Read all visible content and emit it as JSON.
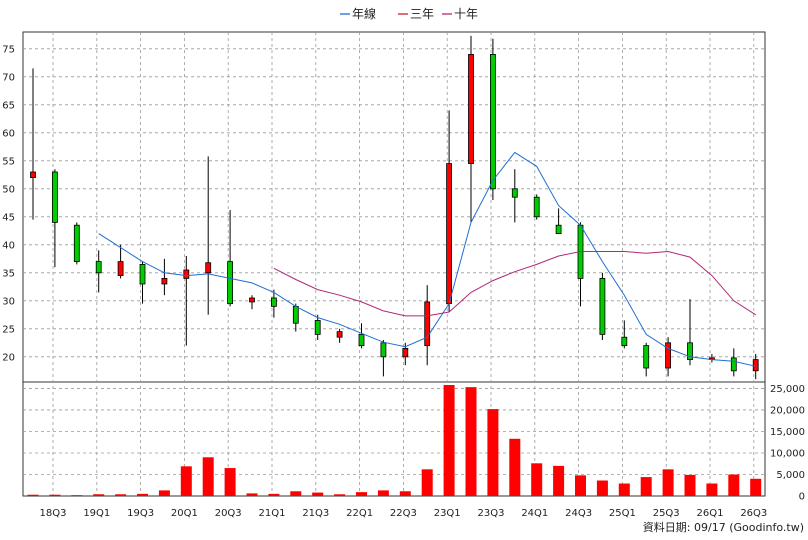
{
  "chart_data": {
    "type": "candlestick+bar",
    "legend": [
      {
        "name": "年線",
        "color": "#1f6fd1"
      },
      {
        "name": "三年",
        "color": "#d11f1f"
      },
      {
        "name": "十年",
        "color": "#b0287a"
      }
    ],
    "x_tick_labels": [
      "18Q3",
      "19Q1",
      "19Q3",
      "20Q1",
      "20Q3",
      "21Q1",
      "21Q3",
      "22Q1",
      "22Q3",
      "23Q1",
      "23Q3",
      "24Q1",
      "24Q3",
      "25Q1",
      "25Q3",
      "26Q1",
      "26Q3"
    ],
    "price_axis": {
      "ticks": [
        20,
        25,
        30,
        35,
        40,
        45,
        50,
        55,
        60,
        65,
        70,
        75
      ],
      "range": [
        15.5,
        78
      ]
    },
    "volume_axis": {
      "ticks": [
        "0",
        "5,000",
        "10,000",
        "15,000",
        "20,000",
        "25,000"
      ],
      "range": [
        0,
        26500
      ]
    },
    "candles": [
      {
        "o": 52.0,
        "h": 71.5,
        "l": 44.5,
        "c": 53.0
      },
      {
        "o": 53.0,
        "h": 53.5,
        "l": 36.0,
        "c": 44.0
      },
      {
        "o": 43.5,
        "h": 44.0,
        "l": 36.5,
        "c": 37.0
      },
      {
        "o": 37.0,
        "h": 39.0,
        "l": 31.5,
        "c": 35.0
      },
      {
        "o": 34.5,
        "h": 40.0,
        "l": 34.0,
        "c": 37.0
      },
      {
        "o": 36.5,
        "h": 37.0,
        "l": 29.5,
        "c": 33.0
      },
      {
        "o": 33.0,
        "h": 37.5,
        "l": 31.0,
        "c": 34.0
      },
      {
        "o": 34.0,
        "h": 38.0,
        "l": 22.0,
        "c": 35.5
      },
      {
        "o": 35.0,
        "h": 55.8,
        "l": 27.5,
        "c": 36.8
      },
      {
        "o": 37.0,
        "h": 46.2,
        "l": 29.0,
        "c": 29.5
      },
      {
        "o": 29.8,
        "h": 31.0,
        "l": 28.5,
        "c": 30.5
      },
      {
        "o": 30.5,
        "h": 32.0,
        "l": 27.0,
        "c": 29.0
      },
      {
        "o": 29.0,
        "h": 29.5,
        "l": 24.5,
        "c": 26.0
      },
      {
        "o": 26.5,
        "h": 27.5,
        "l": 23.0,
        "c": 24.0
      },
      {
        "o": 23.5,
        "h": 25.0,
        "l": 22.5,
        "c": 24.5
      },
      {
        "o": 24.0,
        "h": 26.0,
        "l": 21.5,
        "c": 22.0
      },
      {
        "o": 22.5,
        "h": 23.0,
        "l": 16.5,
        "c": 20.0
      },
      {
        "o": 20.0,
        "h": 22.5,
        "l": 18.5,
        "c": 21.5
      },
      {
        "o": 22.0,
        "h": 32.8,
        "l": 18.5,
        "c": 29.8
      },
      {
        "o": 29.5,
        "h": 64.0,
        "l": 28.0,
        "c": 54.5
      },
      {
        "o": 54.5,
        "h": 77.3,
        "l": 44.0,
        "c": 74.0
      },
      {
        "o": 74.0,
        "h": 76.8,
        "l": 48.0,
        "c": 50.0
      },
      {
        "o": 50.0,
        "h": 53.5,
        "l": 44.0,
        "c": 48.5
      },
      {
        "o": 48.5,
        "h": 49.0,
        "l": 44.5,
        "c": 45.0
      },
      {
        "o": 43.5,
        "h": 46.5,
        "l": 42.5,
        "c": 42.0
      },
      {
        "o": 43.5,
        "h": 44.0,
        "l": 29.0,
        "c": 34.0
      },
      {
        "o": 34.0,
        "h": 35.0,
        "l": 23.0,
        "c": 24.0
      },
      {
        "o": 23.5,
        "h": 26.5,
        "l": 21.5,
        "c": 22.0
      },
      {
        "o": 22.0,
        "h": 22.5,
        "l": 16.5,
        "c": 18.0
      },
      {
        "o": 18.0,
        "h": 23.5,
        "l": 16.5,
        "c": 22.5
      },
      {
        "o": 22.5,
        "h": 30.3,
        "l": 18.5,
        "c": 19.5
      },
      {
        "o": 19.5,
        "h": 20.5,
        "l": 19.0,
        "c": 19.8
      },
      {
        "o": 19.8,
        "h": 21.5,
        "l": 16.5,
        "c": 17.5
      },
      {
        "o": 17.5,
        "h": 20.5,
        "l": 16.0,
        "c": 19.5
      }
    ],
    "volumes": [
      300,
      300,
      200,
      400,
      400,
      500,
      1300,
      6900,
      9000,
      6500,
      600,
      500,
      1100,
      800,
      400,
      900,
      1300,
      1100,
      6200,
      25800,
      25300,
      20200,
      13300,
      7600,
      7000,
      4800,
      3600,
      2900,
      4400,
      6200,
      4900,
      2900,
      5000,
      4000
    ],
    "ma_year": [
      null,
      null,
      null,
      42.0,
      39.5,
      37.0,
      35.0,
      34.5,
      34.8,
      34.0,
      33.2,
      31.5,
      29.0,
      27.0,
      25.8,
      24.2,
      22.6,
      21.8,
      23.5,
      29.5,
      44.0,
      51.5,
      56.5,
      54.0,
      47.0,
      43.5,
      37.0,
      31.0,
      24.0,
      21.5,
      20.0,
      19.5,
      19.2,
      18.3
    ],
    "ma_three": [
      null,
      null,
      null,
      null,
      null,
      null,
      null,
      null,
      null,
      null,
      null,
      35.8,
      33.8,
      32.0,
      31.0,
      29.8,
      28.2,
      27.3,
      27.3,
      28.0,
      31.5,
      33.6,
      35.2,
      36.5,
      38.0,
      38.8,
      38.8,
      38.8,
      38.5,
      38.8,
      37.8,
      34.5,
      30.0,
      27.5
    ],
    "ma_ten": []
  },
  "credit": "資料日期: 09/17 (Goodinfo.tw)"
}
